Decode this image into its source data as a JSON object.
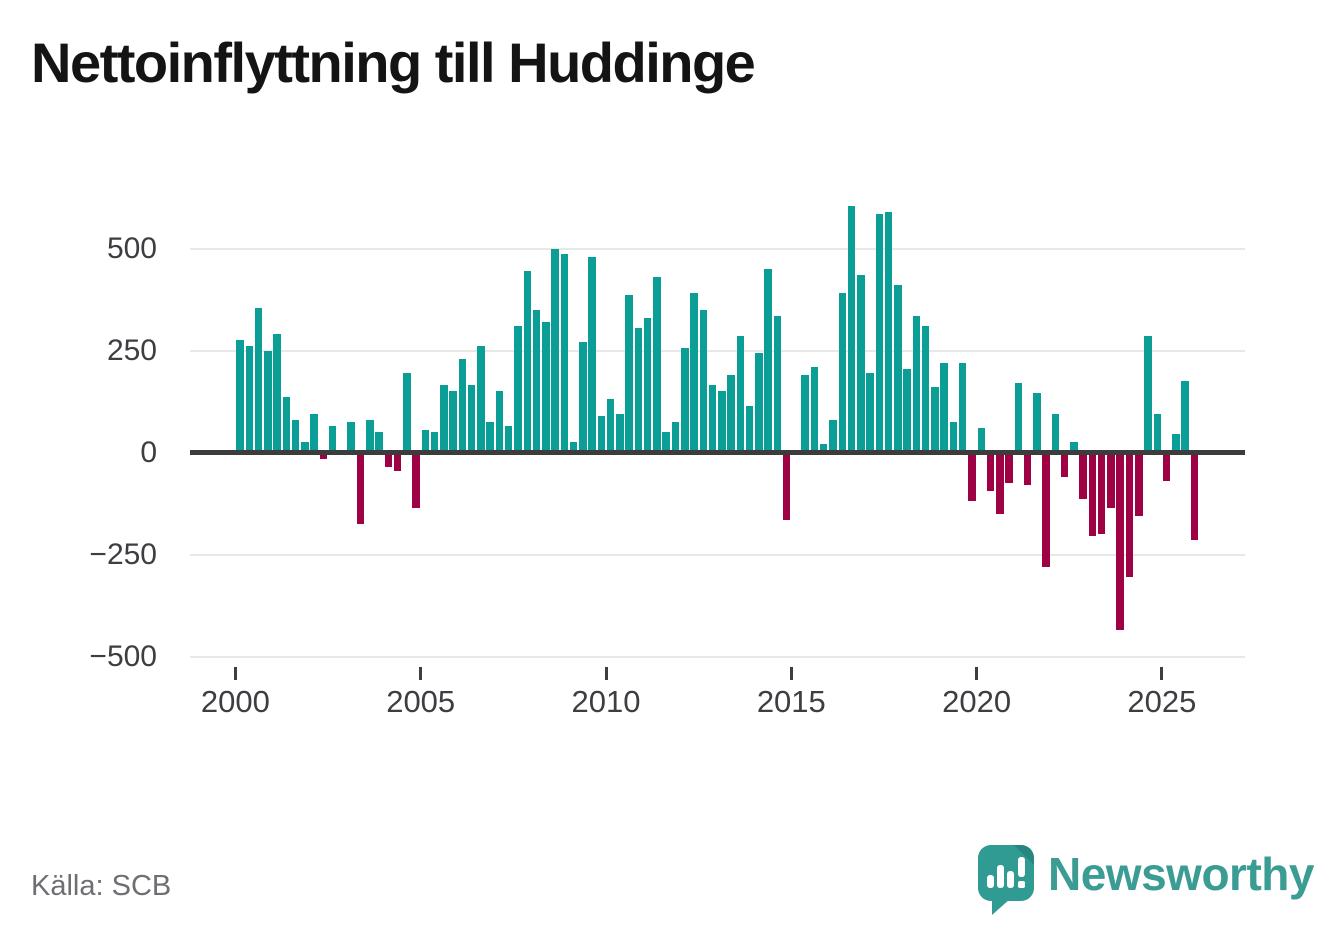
{
  "title": "Nettoinflyttning till Huddinge",
  "source": "Källa: SCB",
  "branding": {
    "logo_text": "Newsworthy",
    "logo_icon": "speech-bubble-bar-chart-icon"
  },
  "colors": {
    "positive": "#0b9e96",
    "negative": "#9e0245",
    "axis": "#3c3c3c",
    "grid": "#e8e8e8",
    "tick_text": "#3d3d42",
    "source_text": "#6e6e73",
    "brand": "#3b9c94",
    "title_text": "#141414"
  },
  "chart_data": {
    "type": "bar",
    "title": "Nettoinflyttning till Huddinge",
    "bar_period": "quarter",
    "x_tick_labels": [
      "2000",
      "2005",
      "2010",
      "2015",
      "2020",
      "2025"
    ],
    "y_ticks": [
      500,
      250,
      0,
      -250,
      -500
    ],
    "y_tick_labels": [
      "500",
      "250",
      "0",
      "−250",
      "−500"
    ],
    "ylim": [
      -500,
      620
    ],
    "grid": true,
    "legend": false,
    "years": [
      2000,
      2001,
      2002,
      2003,
      2004,
      2005,
      2006,
      2007,
      2008,
      2009,
      2010,
      2011,
      2012,
      2013,
      2014,
      2015,
      2016,
      2017,
      2018,
      2019,
      2020,
      2021,
      2022,
      2023,
      2024,
      2025
    ],
    "quarter_labels": [
      "Q1",
      "Q2",
      "Q3",
      "Q4"
    ],
    "values_by_year": {
      "2000": [
        275,
        260,
        355,
        250
      ],
      "2001": [
        290,
        135,
        80,
        25
      ],
      "2002": [
        95,
        -15,
        65,
        0
      ],
      "2003": [
        75,
        -175,
        80,
        50
      ],
      "2004": [
        -35,
        -45,
        195,
        -135
      ],
      "2005": [
        55,
        50,
        165,
        150
      ],
      "2006": [
        230,
        165,
        260,
        75
      ],
      "2007": [
        150,
        65,
        310,
        445
      ],
      "2008": [
        350,
        320,
        500,
        487
      ],
      "2009": [
        25,
        270,
        480,
        90
      ],
      "2010": [
        130,
        95,
        385,
        305
      ],
      "2011": [
        330,
        430,
        50,
        75
      ],
      "2012": [
        255,
        390,
        350,
        165
      ],
      "2013": [
        150,
        190,
        285,
        115
      ],
      "2014": [
        245,
        450,
        335,
        -165
      ],
      "2015": [
        0,
        190,
        210,
        20
      ],
      "2016": [
        80,
        390,
        605,
        435
      ],
      "2017": [
        195,
        585,
        590,
        410
      ],
      "2018": [
        205,
        335,
        310,
        160
      ],
      "2019": [
        220,
        75,
        220,
        -120
      ],
      "2020": [
        60,
        -95,
        -150,
        -75
      ],
      "2021": [
        170,
        -80,
        145,
        -280
      ],
      "2022": [
        95,
        -60,
        25,
        -115
      ],
      "2023": [
        -205,
        -200,
        -135,
        -435
      ],
      "2024": [
        -305,
        -155,
        285,
        95
      ],
      "2025": [
        -70,
        45,
        175,
        -215
      ]
    },
    "positive_color": "#0b9e96",
    "negative_color": "#9e0245"
  }
}
